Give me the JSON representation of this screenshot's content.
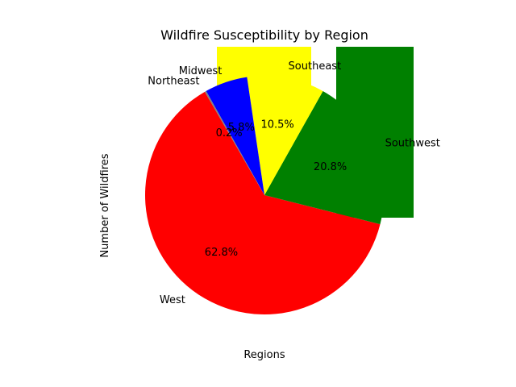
{
  "chart_data": {
    "type": "pie",
    "title": "Wildfire Susceptibility by Region",
    "xlabel": "Regions",
    "ylabel": "Number of Wildfires",
    "start_angle_deg": 120,
    "direction": "counterclockwise",
    "slices": [
      {
        "label": "West",
        "percent": 62.8,
        "percent_label": "62.8%",
        "color": "#ff0000"
      },
      {
        "label": "Southwest",
        "percent": 20.8,
        "percent_label": "20.8%",
        "color": "#008000"
      },
      {
        "label": "Southeast",
        "percent": 10.5,
        "percent_label": "10.5%",
        "color": "#ffff00"
      },
      {
        "label": "Midwest",
        "percent": 5.8,
        "percent_label": "5.8%",
        "color": "#0000ff"
      },
      {
        "label": "Northeast",
        "percent": 0.2,
        "percent_label": "0.2%",
        "color": "#808080"
      }
    ],
    "background_bars": [
      {
        "color": "#ffff00"
      },
      {
        "color": "#008000"
      }
    ]
  }
}
